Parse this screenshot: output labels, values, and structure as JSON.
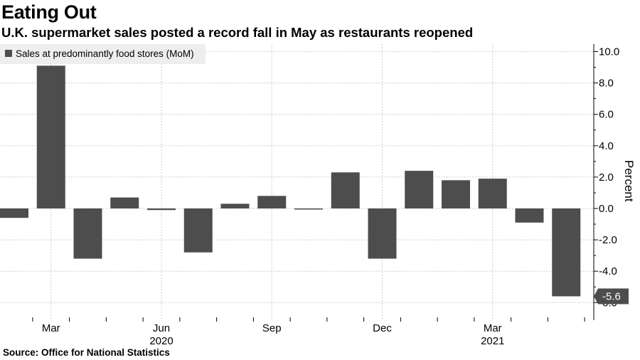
{
  "header": {
    "title": "Eating Out",
    "subtitle": "U.K. supermarket sales posted a record fall in May as restaurants reopened"
  },
  "footer": {
    "source": "Source: Office for National Statistics"
  },
  "colors": {
    "bar": "#4d4d4d",
    "grid": "#cccccc",
    "legend_bg": "#eeeeee"
  },
  "chart_data": {
    "type": "bar",
    "categories": [
      "Feb 2020",
      "Mar 2020",
      "Apr 2020",
      "May 2020",
      "Jun 2020",
      "Jul 2020",
      "Aug 2020",
      "Sep 2020",
      "Oct 2020",
      "Nov 2020",
      "Dec 2020",
      "Jan 2021",
      "Feb 2021",
      "Mar 2021",
      "Apr 2021",
      "May 2021"
    ],
    "series": [
      {
        "name": "Sales at predominantly food stores (MoM)",
        "values": [
          -0.6,
          9.1,
          -3.2,
          0.7,
          -0.1,
          -2.8,
          0.3,
          0.8,
          -0.05,
          2.3,
          -3.2,
          2.4,
          1.8,
          1.9,
          -0.9,
          -5.6
        ]
      }
    ],
    "ylabel": "Percent",
    "ylim": [
      -6.5,
      10.5
    ],
    "yticks": [
      "10.0",
      "8.0",
      "6.0",
      "4.0",
      "2.0",
      "0.0",
      "-2.0",
      "-4.0",
      "-6.0"
    ],
    "ytick_values": [
      10,
      8,
      6,
      4,
      2,
      0,
      -2,
      -4,
      -6
    ],
    "xtick_labels": [
      "Mar",
      "Jun",
      "Sep",
      "Dec",
      "Mar"
    ],
    "xtick_indices": [
      1,
      4,
      7,
      10,
      13
    ],
    "year_labels": [
      "2020",
      "2021"
    ],
    "year_indices": [
      4,
      13
    ],
    "last_value_label": "-5.6",
    "last_value": -5.6,
    "legend_position": "top-left",
    "y_axis_side": "right",
    "grid": true
  }
}
